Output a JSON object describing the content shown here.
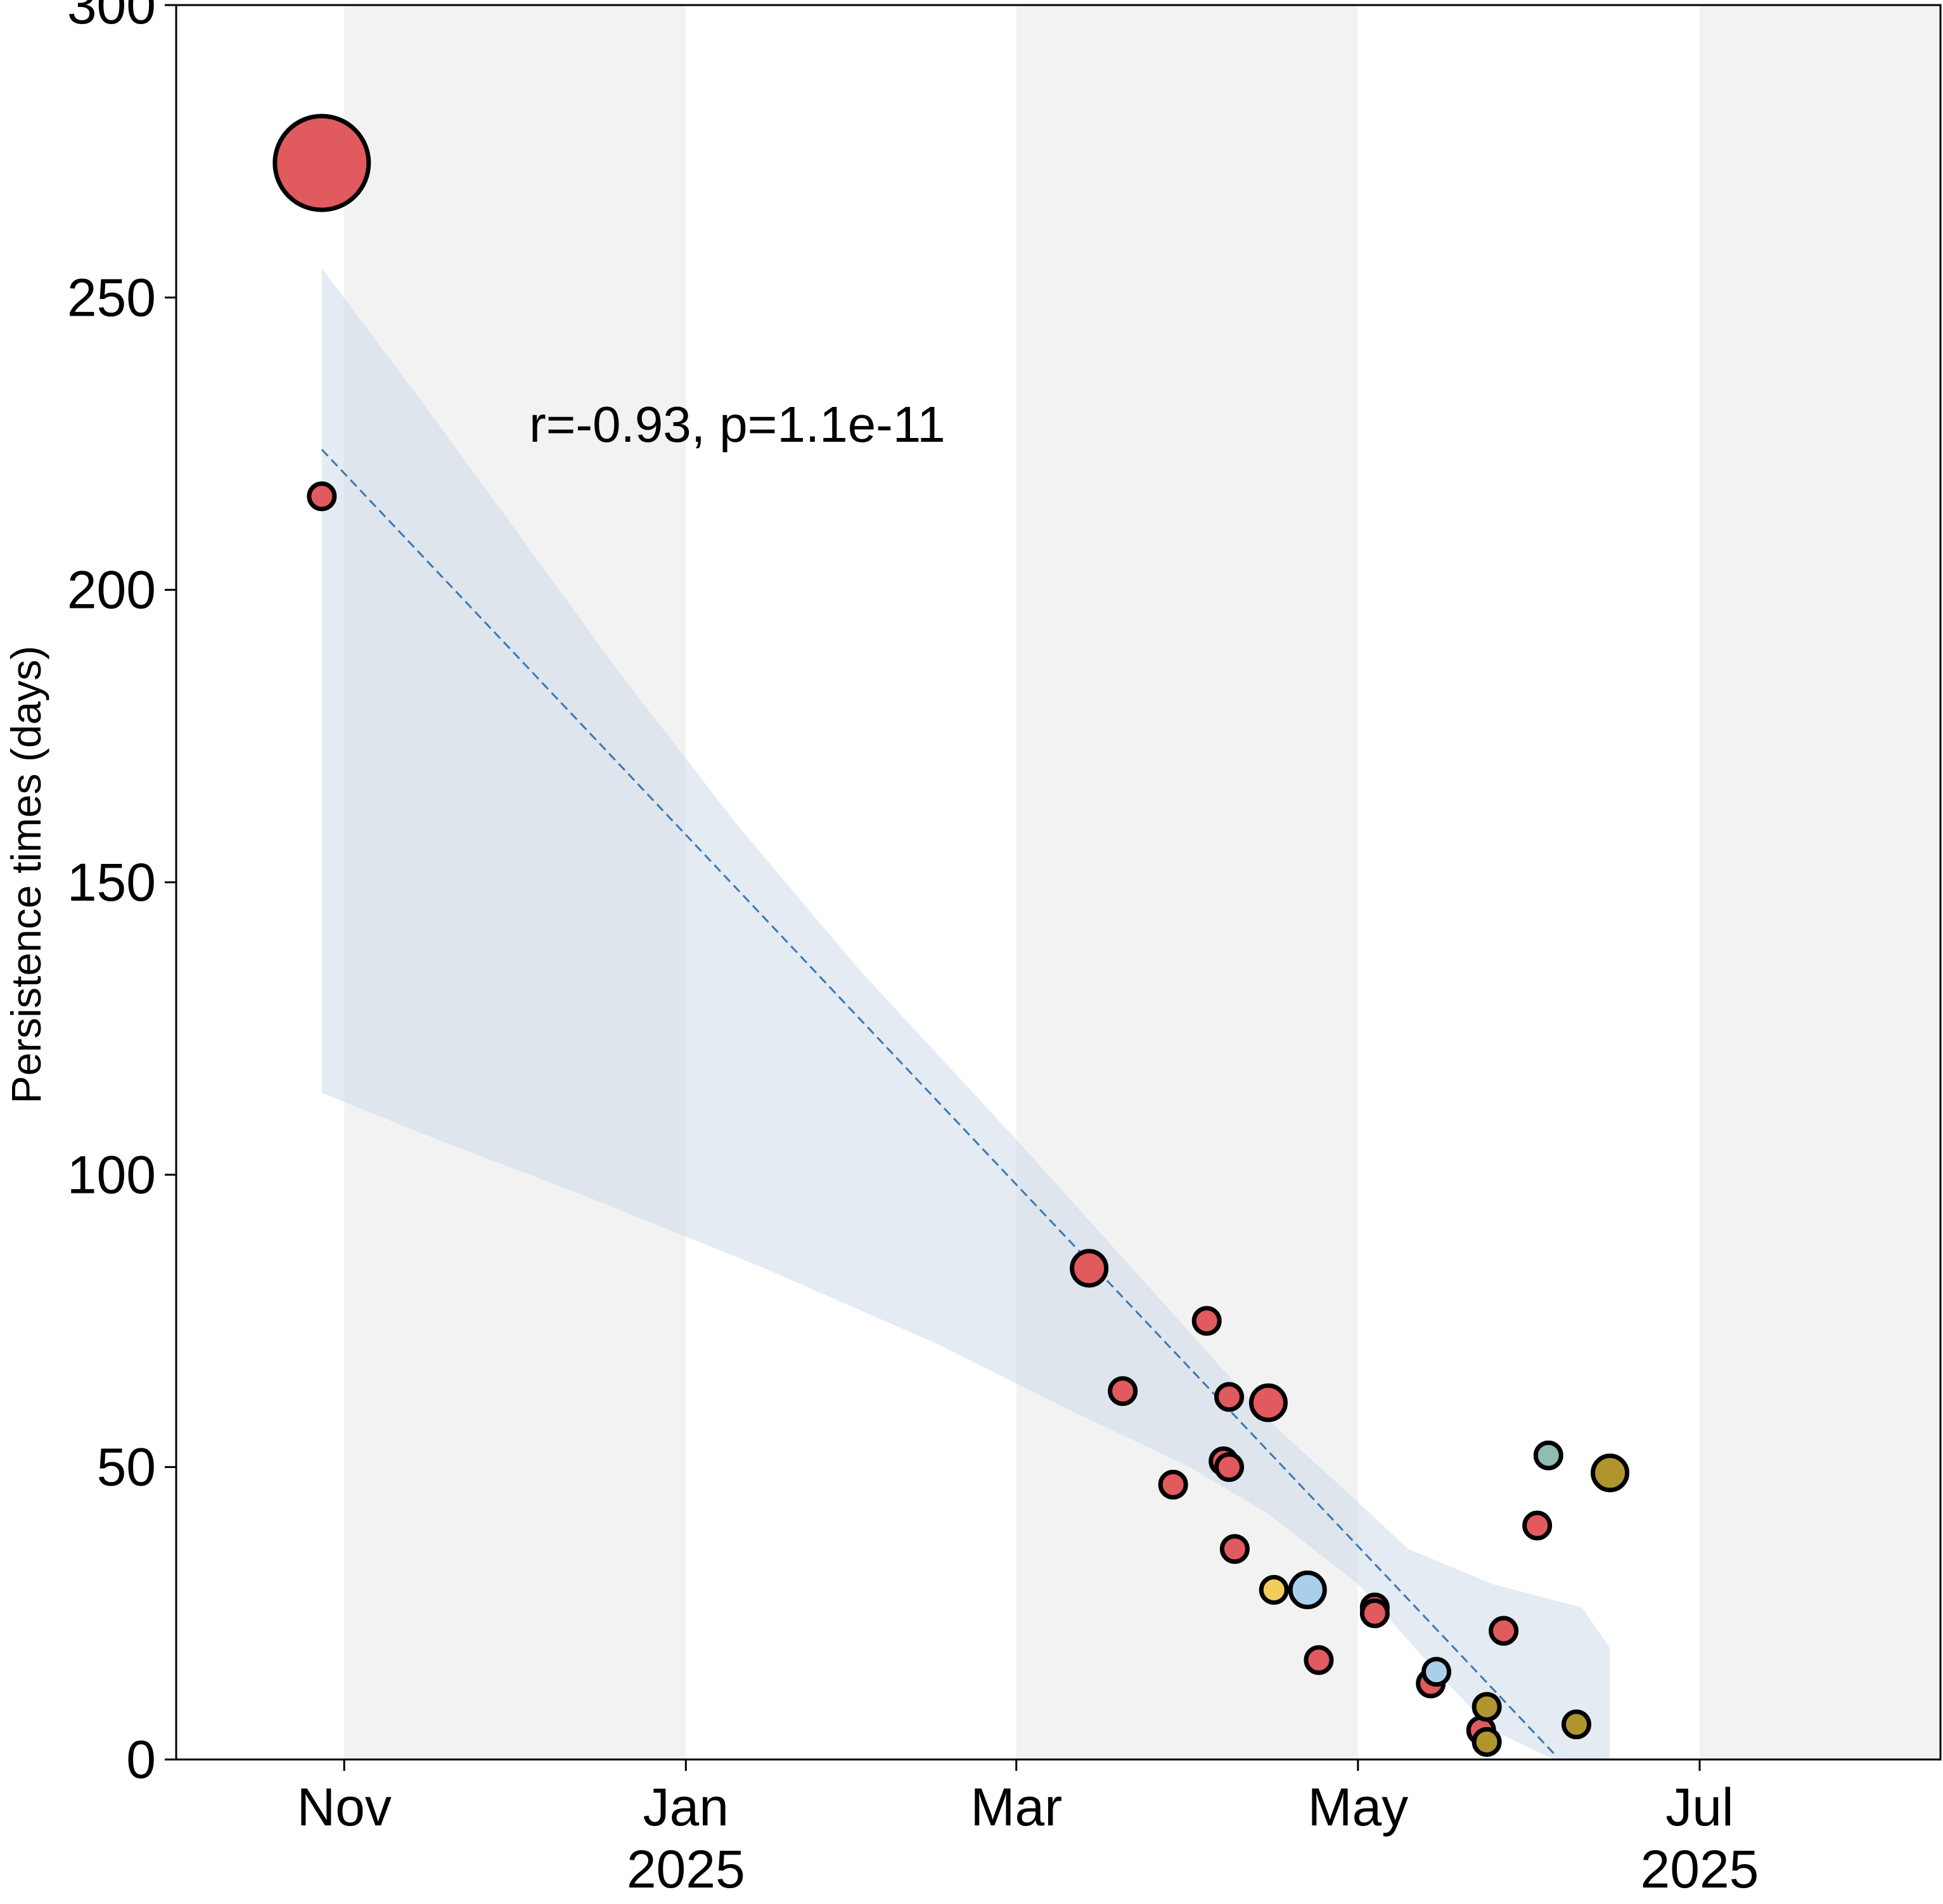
{
  "chart_data": {
    "type": "scatter",
    "title": "",
    "xlabel": "",
    "ylabel": "Persistence times (days)",
    "ylim": [
      0,
      300
    ],
    "xlim": [
      "2024-10-02",
      "2025-08-13"
    ],
    "y_ticks": [
      0,
      50,
      100,
      150,
      200,
      250,
      300
    ],
    "x_ticks": [
      {
        "date": "2024-11-01",
        "label": "Nov",
        "sublabel": ""
      },
      {
        "date": "2025-01-01",
        "label": "Jan",
        "sublabel": "2025"
      },
      {
        "date": "2025-03-01",
        "label": "Mar",
        "sublabel": ""
      },
      {
        "date": "2025-05-01",
        "label": "May",
        "sublabel": ""
      },
      {
        "date": "2025-07-01",
        "label": "Jul",
        "sublabel": "2025"
      }
    ],
    "shaded_month_bands": [
      [
        "2024-11-01",
        "2025-01-01"
      ],
      [
        "2025-03-01",
        "2025-05-01"
      ],
      [
        "2025-07-01",
        "2025-08-13"
      ]
    ],
    "annotation": "r=-0.93, p=1.1e-11",
    "fit_line": {
      "style": "dashed",
      "color": "#3a78b5",
      "points": [
        [
          "2024-10-28",
          224
        ],
        [
          "2025-06-05",
          1
        ]
      ]
    },
    "confidence_band": {
      "color": "#c9d8e8",
      "upper": [
        [
          "2024-10-28",
          255
        ],
        [
          "2024-11-15",
          232
        ],
        [
          "2024-12-01",
          211
        ],
        [
          "2024-12-20",
          186
        ],
        [
          "2025-01-10",
          160
        ],
        [
          "2025-02-01",
          135
        ],
        [
          "2025-03-01",
          106
        ],
        [
          "2025-04-01",
          73
        ],
        [
          "2025-04-15",
          58
        ],
        [
          "2025-05-01",
          44
        ],
        [
          "2025-05-10",
          36
        ],
        [
          "2025-05-25",
          30
        ],
        [
          "2025-06-10",
          26
        ],
        [
          "2025-06-15",
          19
        ]
      ],
      "lower": [
        [
          "2024-10-28",
          114
        ],
        [
          "2024-11-15",
          107
        ],
        [
          "2024-12-15",
          96
        ],
        [
          "2025-01-15",
          84
        ],
        [
          "2025-02-15",
          71
        ],
        [
          "2025-03-10",
          60
        ],
        [
          "2025-04-01",
          50
        ],
        [
          "2025-04-15",
          42
        ],
        [
          "2025-05-01",
          30
        ],
        [
          "2025-05-15",
          15
        ],
        [
          "2025-05-25",
          5
        ],
        [
          "2025-06-05",
          0
        ],
        [
          "2025-06-15",
          0
        ]
      ]
    },
    "series": [
      {
        "color": "#e05a5e",
        "points": [
          {
            "x": "2024-10-28",
            "y": 273,
            "size": "xlarge"
          },
          {
            "x": "2024-10-28",
            "y": 216,
            "size": "small"
          },
          {
            "x": "2025-03-14",
            "y": 84,
            "size": "medium"
          },
          {
            "x": "2025-03-20",
            "y": 63,
            "size": "small"
          },
          {
            "x": "2025-03-29",
            "y": 47,
            "size": "small"
          },
          {
            "x": "2025-04-04",
            "y": 75,
            "size": "small"
          },
          {
            "x": "2025-04-07",
            "y": 51,
            "size": "small"
          },
          {
            "x": "2025-04-08",
            "y": 62,
            "size": "small"
          },
          {
            "x": "2025-04-08",
            "y": 50,
            "size": "small"
          },
          {
            "x": "2025-04-09",
            "y": 36,
            "size": "small"
          },
          {
            "x": "2025-04-15",
            "y": 61,
            "size": "medium"
          },
          {
            "x": "2025-04-24",
            "y": 17,
            "size": "small"
          },
          {
            "x": "2025-05-04",
            "y": 26,
            "size": "small"
          },
          {
            "x": "2025-05-04",
            "y": 25,
            "size": "small"
          },
          {
            "x": "2025-05-14",
            "y": 13,
            "size": "small"
          },
          {
            "x": "2025-05-23",
            "y": 5,
            "size": "small"
          },
          {
            "x": "2025-05-27",
            "y": 22,
            "size": "small"
          },
          {
            "x": "2025-06-02",
            "y": 40,
            "size": "small"
          }
        ]
      },
      {
        "color": "#a9cfec",
        "points": [
          {
            "x": "2025-04-22",
            "y": 29,
            "size": "medium"
          },
          {
            "x": "2025-05-15",
            "y": 15,
            "size": "small"
          }
        ]
      },
      {
        "color": "#f2cd5c",
        "points": [
          {
            "x": "2025-04-16",
            "y": 29,
            "size": "small"
          }
        ]
      },
      {
        "color": "#b0952f",
        "points": [
          {
            "x": "2025-05-24",
            "y": 9,
            "size": "small"
          },
          {
            "x": "2025-05-24",
            "y": 3,
            "size": "small"
          },
          {
            "x": "2025-06-09",
            "y": 6,
            "size": "small"
          },
          {
            "x": "2025-06-15",
            "y": 49,
            "size": "medium"
          }
        ]
      },
      {
        "color": "#92bbb3",
        "points": [
          {
            "x": "2025-06-04",
            "y": 52,
            "size": "small"
          }
        ]
      }
    ]
  }
}
